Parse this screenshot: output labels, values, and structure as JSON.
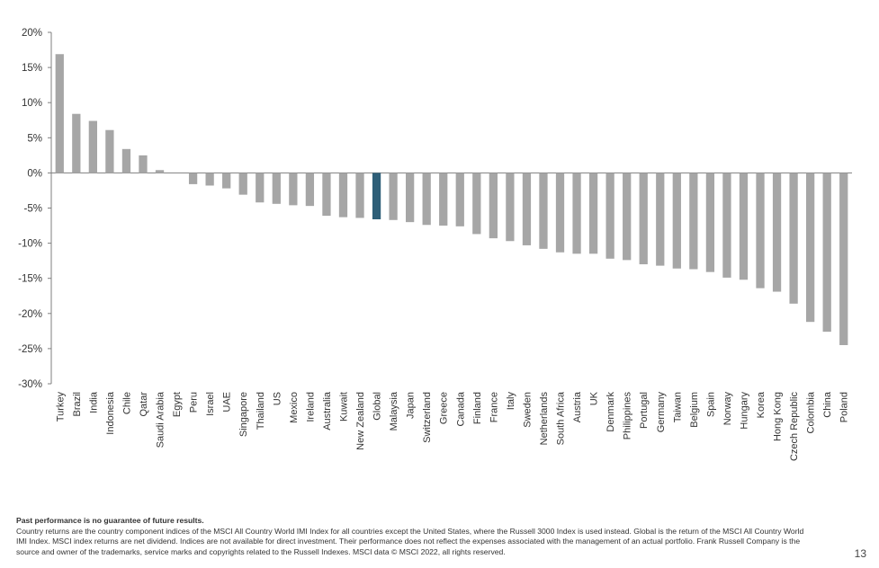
{
  "chart_data": {
    "type": "bar",
    "title": "",
    "xlabel": "",
    "ylabel": "",
    "ylim": [
      -30,
      20
    ],
    "yticks": [
      "20%",
      "15%",
      "10%",
      "5%",
      "0%",
      "-5%",
      "-10%",
      "-15%",
      "-20%",
      "-25%",
      "-30%"
    ],
    "ytick_values": [
      20,
      15,
      10,
      5,
      0,
      -5,
      -10,
      -15,
      -20,
      -25,
      -30
    ],
    "grid": false,
    "categories": [
      "Turkey",
      "Brazil",
      "India",
      "Indonesia",
      "Chile",
      "Qatar",
      "Saudi Arabia",
      "Egypt",
      "Peru",
      "Israel",
      "UAE",
      "Singapore",
      "Thailand",
      "US",
      "Mexico",
      "Ireland",
      "Australia",
      "Kuwait",
      "New Zealand",
      "Global",
      "Malaysia",
      "Japan",
      "Switzerland",
      "Greece",
      "Canada",
      "Finland",
      "France",
      "Italy",
      "Sweden",
      "Netherlands",
      "South Africa",
      "Austria",
      "UK",
      "Denmark",
      "Philippines",
      "Portugal",
      "Germany",
      "Taiwan",
      "Belgium",
      "Spain",
      "Norway",
      "Hungary",
      "Korea",
      "Hong Kong",
      "Czech Republic",
      "Colombia",
      "China",
      "Poland"
    ],
    "values": [
      16.9,
      8.4,
      7.4,
      6.1,
      3.4,
      2.5,
      0.4,
      0,
      -1.6,
      -1.8,
      -2.2,
      -3.1,
      -4.2,
      -4.4,
      -4.6,
      -4.7,
      -6.1,
      -6.3,
      -6.4,
      -6.6,
      -6.7,
      -7.0,
      -7.4,
      -7.5,
      -7.6,
      -8.7,
      -9.3,
      -9.7,
      -10.3,
      -10.8,
      -11.3,
      -11.5,
      -11.5,
      -12.2,
      -12.4,
      -13.0,
      -13.2,
      -13.6,
      -13.7,
      -14.1,
      -14.9,
      -15.2,
      -16.4,
      -16.9,
      -18.6,
      -21.2,
      -22.6,
      -24.5
    ],
    "highlight_category": "Global",
    "colors": {
      "bar": "#a6a6a6",
      "highlight": "#2e5f78",
      "axis": "#7f7f7f"
    }
  },
  "footnote": {
    "bold_line": "Past performance is no guarantee of future results.",
    "body": "Country returns are the country component indices of the MSCI All Country World IMI Index for all countries except the United States, where the Russell 3000 Index is used instead. Global is the return of the MSCI All Country World IMI Index. MSCI index returns are net dividend. Indices are not available for direct investment. Their performance does not reflect the expenses associated with the management of an actual portfolio. Frank Russell Company is the source and owner of the trademarks, service marks and copyrights related to the Russell Indexes. MSCI data © MSCI 2022, all rights reserved."
  },
  "page_number": "13"
}
